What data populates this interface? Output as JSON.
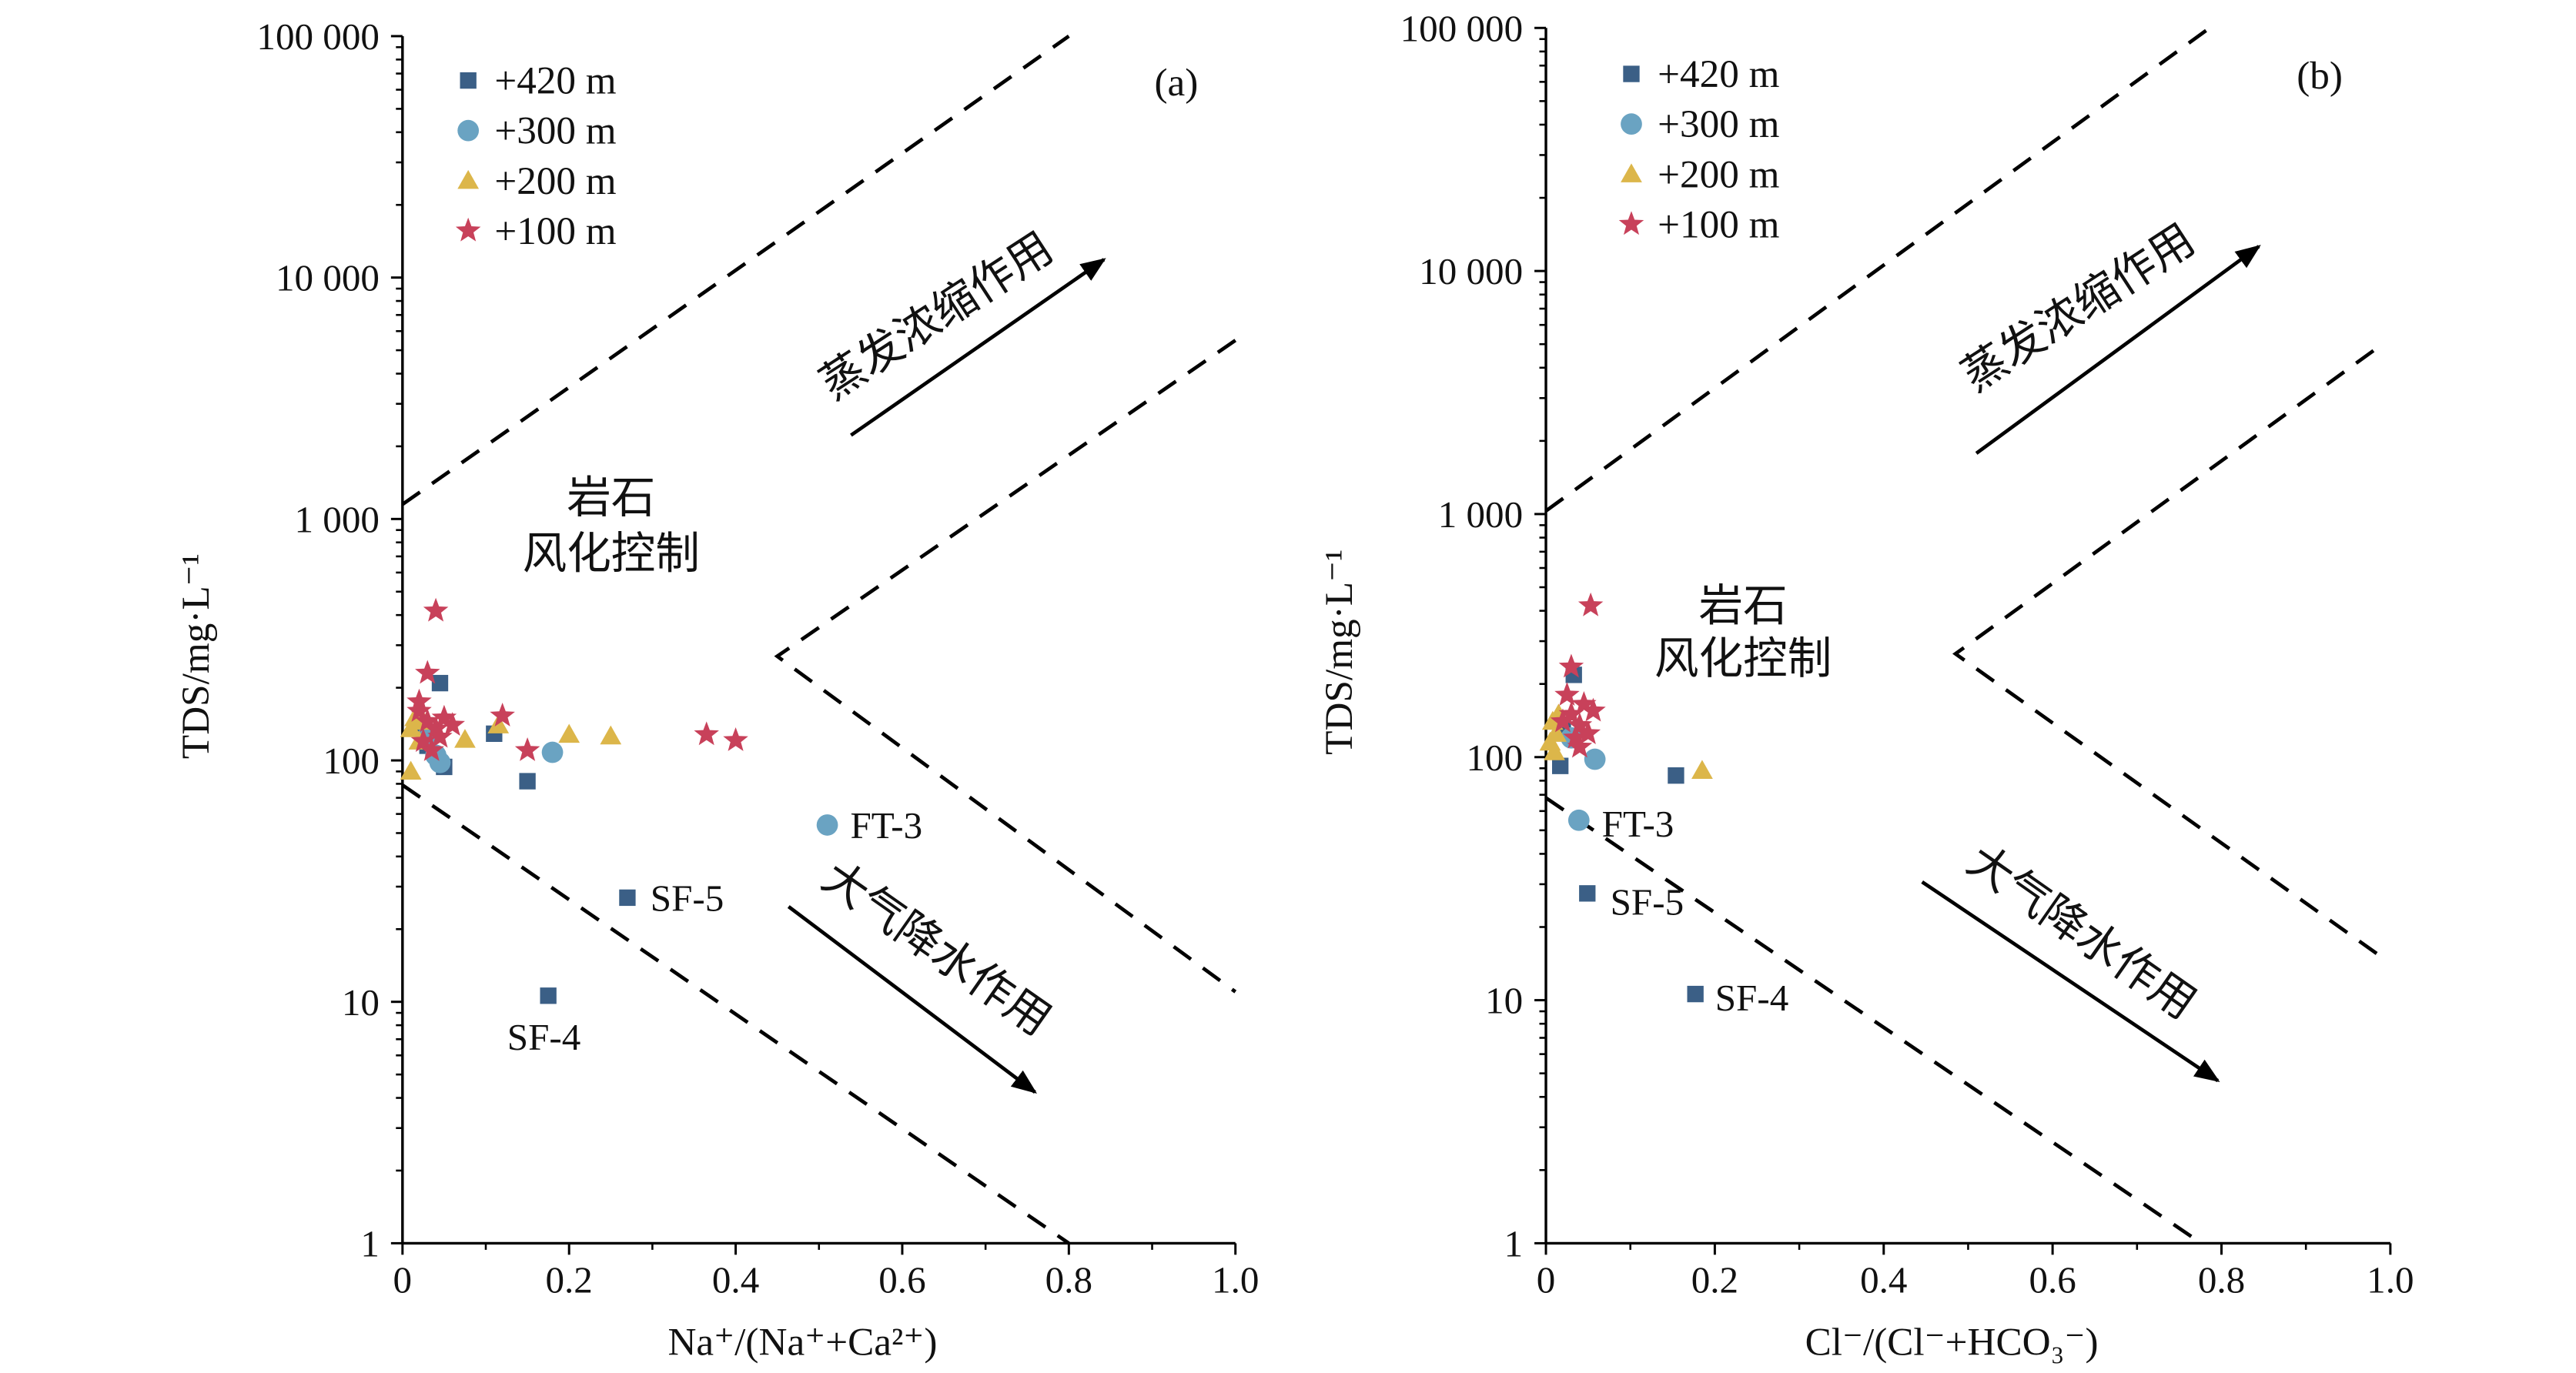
{
  "chart_data": [
    {
      "panel": "(a)",
      "type": "scatter",
      "xlabel": "Na⁺/(Na⁺+Ca²⁺)",
      "ylabel": "TDS/mg·L⁻¹",
      "xlim": [
        0,
        1.0
      ],
      "ylim": [
        1,
        100000
      ],
      "yscale": "log",
      "xticks": [
        "0",
        "0.2",
        "0.4",
        "0.6",
        "0.8",
        "1.0"
      ],
      "yticks": [
        "1",
        "10",
        "100",
        "1 000",
        "10 000",
        "100 000"
      ],
      "grid": false,
      "legend": "top-left",
      "series": [
        {
          "name": "+420 m",
          "marker": "square",
          "color": "#3b5f86",
          "points": [
            [
              0.045,
              209
            ],
            [
              0.11,
              129
            ],
            [
              0.15,
              82
            ],
            [
              0.27,
              27
            ],
            [
              0.175,
              10.6
            ],
            [
              0.05,
              94
            ],
            [
              0.03,
              115
            ],
            [
              0.02,
              140
            ]
          ]
        },
        {
          "name": "+300 m",
          "marker": "circle",
          "color": "#6aa3c2",
          "points": [
            [
              0.18,
              108
            ],
            [
              0.51,
              54
            ],
            [
              0.04,
              105
            ],
            [
              0.045,
              98
            ],
            [
              0.03,
              125
            ]
          ]
        },
        {
          "name": "+200 m",
          "marker": "triangle",
          "color": "#dcb64a",
          "points": [
            [
              0.01,
              90
            ],
            [
              0.075,
              122
            ],
            [
              0.2,
              128
            ],
            [
              0.25,
              126
            ],
            [
              0.115,
              140
            ],
            [
              0.01,
              135
            ],
            [
              0.015,
              150
            ],
            [
              0.02,
              120
            ],
            [
              0.025,
              145
            ]
          ]
        },
        {
          "name": "+100 m",
          "marker": "star",
          "color": "#c8415a",
          "points": [
            [
              0.04,
              416
            ],
            [
              0.03,
              230
            ],
            [
              0.12,
              153
            ],
            [
              0.15,
              110
            ],
            [
              0.365,
              128
            ],
            [
              0.4,
              121
            ],
            [
              0.02,
              160
            ],
            [
              0.03,
              145
            ],
            [
              0.04,
              135
            ],
            [
              0.05,
              150
            ],
            [
              0.025,
              120
            ],
            [
              0.035,
              110
            ],
            [
              0.06,
              140
            ],
            [
              0.02,
              175
            ],
            [
              0.045,
              125
            ]
          ]
        }
      ],
      "annotations": [
        {
          "text": "FT-3",
          "x": 0.51,
          "y": 54
        },
        {
          "text": "SF-5",
          "x": 0.27,
          "y": 27
        },
        {
          "text": "SF-4",
          "x": 0.175,
          "y": 10.6
        }
      ],
      "region_labels": [
        "岩石",
        "风化控制"
      ],
      "arrow_labels": [
        "蒸发浓缩作用",
        "大气降水作用"
      ],
      "boundary_lines": [
        [
          [
            0,
            1150
          ],
          [
            0.8,
            100000
          ]
        ],
        [
          [
            1.0,
            5500
          ],
          [
            0.45,
            270
          ],
          [
            1.0,
            11
          ]
        ],
        [
          [
            0,
            79
          ],
          [
            0.8,
            1
          ]
        ]
      ]
    },
    {
      "panel": "(b)",
      "type": "scatter",
      "xlabel": "Cl⁻/(Cl⁻+HCO₃⁻)",
      "ylabel": "TDS/mg·L⁻¹",
      "xlim": [
        0,
        1.0
      ],
      "ylim": [
        1,
        100000
      ],
      "yscale": "log",
      "xticks": [
        "0",
        "0.2",
        "0.4",
        "0.6",
        "0.8",
        "1.0"
      ],
      "yticks": [
        "1",
        "10",
        "100",
        "1 000",
        "10 000",
        "100 000"
      ],
      "grid": false,
      "legend": "top-left",
      "series": [
        {
          "name": "+420 m",
          "marker": "square",
          "color": "#3b5f86",
          "points": [
            [
              0.033,
              218
            ],
            [
              0.017,
              92
            ],
            [
              0.154,
              84
            ],
            [
              0.049,
              27.5
            ],
            [
              0.177,
              10.6
            ],
            [
              0.02,
              130
            ]
          ]
        },
        {
          "name": "+300 m",
          "marker": "circle",
          "color": "#6aa3c2",
          "points": [
            [
              0.058,
              98
            ],
            [
              0.039,
              55
            ],
            [
              0.03,
              120
            ]
          ]
        },
        {
          "name": "+200 m",
          "marker": "triangle",
          "color": "#dcb64a",
          "points": [
            [
              0.185,
              88
            ],
            [
              0.005,
              115
            ],
            [
              0.008,
              140
            ],
            [
              0.012,
              125
            ],
            [
              0.015,
              150
            ],
            [
              0.01,
              105
            ]
          ]
        },
        {
          "name": "+100 m",
          "marker": "star",
          "color": "#c8415a",
          "points": [
            [
              0.053,
              420
            ],
            [
              0.03,
              235
            ],
            [
              0.056,
              155
            ],
            [
              0.025,
              180
            ],
            [
              0.03,
              150
            ],
            [
              0.04,
              135
            ],
            [
              0.035,
              120
            ],
            [
              0.045,
              165
            ],
            [
              0.02,
              140
            ],
            [
              0.04,
              110
            ],
            [
              0.05,
              125
            ]
          ]
        }
      ],
      "annotations": [
        {
          "text": "FT-3",
          "x": 0.039,
          "y": 55
        },
        {
          "text": "SF-5",
          "x": 0.049,
          "y": 27.5
        },
        {
          "text": "SF-4",
          "x": 0.177,
          "y": 10.6
        }
      ],
      "region_labels": [
        "岩石",
        "风化控制"
      ],
      "arrow_labels": [
        "蒸发浓缩作用",
        "大气降水作用"
      ],
      "boundary_lines": [
        [
          [
            0,
            1030
          ],
          [
            0.786,
            100000
          ]
        ],
        [
          [
            0.98,
            4700
          ],
          [
            0.485,
            266
          ],
          [
            0.99,
            15
          ]
        ],
        [
          [
            0,
            68
          ],
          [
            0.776,
            1
          ]
        ]
      ]
    }
  ]
}
